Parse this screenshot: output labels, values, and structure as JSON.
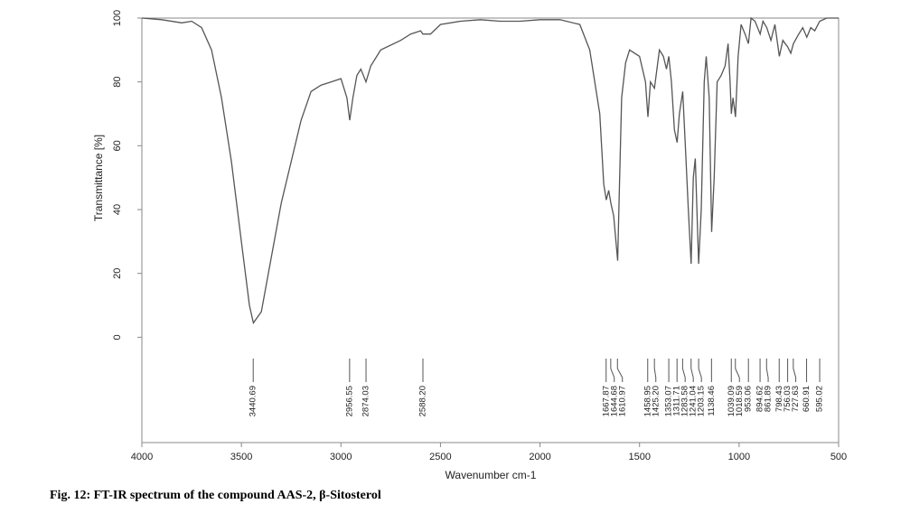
{
  "chart_data": {
    "type": "line",
    "caption": "Fig. 12: FT-IR spectrum of the compound AAS-2, β-Sitosterol",
    "x_label": "Wavenumber cm-1",
    "y_label": "Transmittance [%]",
    "color": "#555555",
    "xlim": [
      4000,
      500
    ],
    "ylim": [
      -33,
      100
    ],
    "xticks": [
      4000,
      3500,
      3000,
      2500,
      2000,
      1500,
      1000,
      500
    ],
    "yticks": [
      0,
      20,
      40,
      60,
      80,
      100
    ],
    "x": [
      4000,
      3900,
      3800,
      3750,
      3700,
      3650,
      3600,
      3550,
      3500,
      3460,
      3440,
      3400,
      3350,
      3300,
      3250,
      3200,
      3150,
      3100,
      3050,
      3000,
      2970,
      2956,
      2940,
      2920,
      2900,
      2874,
      2850,
      2800,
      2700,
      2650,
      2600,
      2588,
      2550,
      2500,
      2400,
      2300,
      2200,
      2100,
      2000,
      1900,
      1800,
      1750,
      1700,
      1680,
      1667,
      1655,
      1644,
      1630,
      1610,
      1600,
      1590,
      1570,
      1550,
      1500,
      1470,
      1458,
      1445,
      1425,
      1400,
      1380,
      1365,
      1353,
      1340,
      1325,
      1311,
      1300,
      1283,
      1270,
      1255,
      1241,
      1230,
      1220,
      1203,
      1190,
      1175,
      1165,
      1150,
      1138,
      1125,
      1110,
      1090,
      1070,
      1055,
      1045,
      1039,
      1030,
      1018,
      1005,
      990,
      970,
      953,
      940,
      920,
      894,
      880,
      861,
      840,
      820,
      798,
      780,
      756,
      740,
      727,
      700,
      680,
      660,
      640,
      620,
      595,
      560,
      520,
      500
    ],
    "values": [
      100,
      99.5,
      98.5,
      99,
      97,
      90,
      75,
      55,
      30,
      10,
      4.5,
      8,
      25,
      42,
      55,
      68,
      77,
      79,
      80,
      81,
      75,
      68,
      75,
      82,
      84,
      80,
      85,
      90,
      93,
      95,
      96,
      95,
      95,
      98,
      99,
      99.5,
      99,
      99,
      99.5,
      99.5,
      98,
      90,
      70,
      48,
      43,
      46,
      42,
      38,
      24,
      50,
      75,
      86,
      90,
      88,
      80,
      69,
      80,
      78,
      90,
      88,
      84,
      88,
      80,
      65,
      61,
      70,
      77,
      60,
      40,
      23,
      50,
      56,
      23,
      40,
      80,
      88,
      75,
      33,
      50,
      80,
      82,
      85,
      92,
      80,
      70,
      75,
      69,
      88,
      98,
      95,
      92,
      100,
      99,
      95,
      99,
      97,
      93,
      98,
      88,
      93,
      91,
      89,
      92,
      95,
      97,
      94,
      97,
      96,
      99,
      100,
      100,
      100
    ],
    "peaks": [
      3440.69,
      2956.55,
      2874.03,
      {
        "value": 2588.2,
        "label": "2588.20"
      },
      1667.87,
      1644.68,
      1610.97,
      1458.95,
      {
        "value": 1425.2,
        "label": "1425.20"
      },
      1353.07,
      1311.71,
      1283.58,
      1241.04,
      1203.15,
      1138.46,
      1039.09,
      1018.59,
      953.06,
      894.62,
      861.89,
      798.43,
      756.03,
      727.63,
      660.91,
      595.02
    ]
  }
}
